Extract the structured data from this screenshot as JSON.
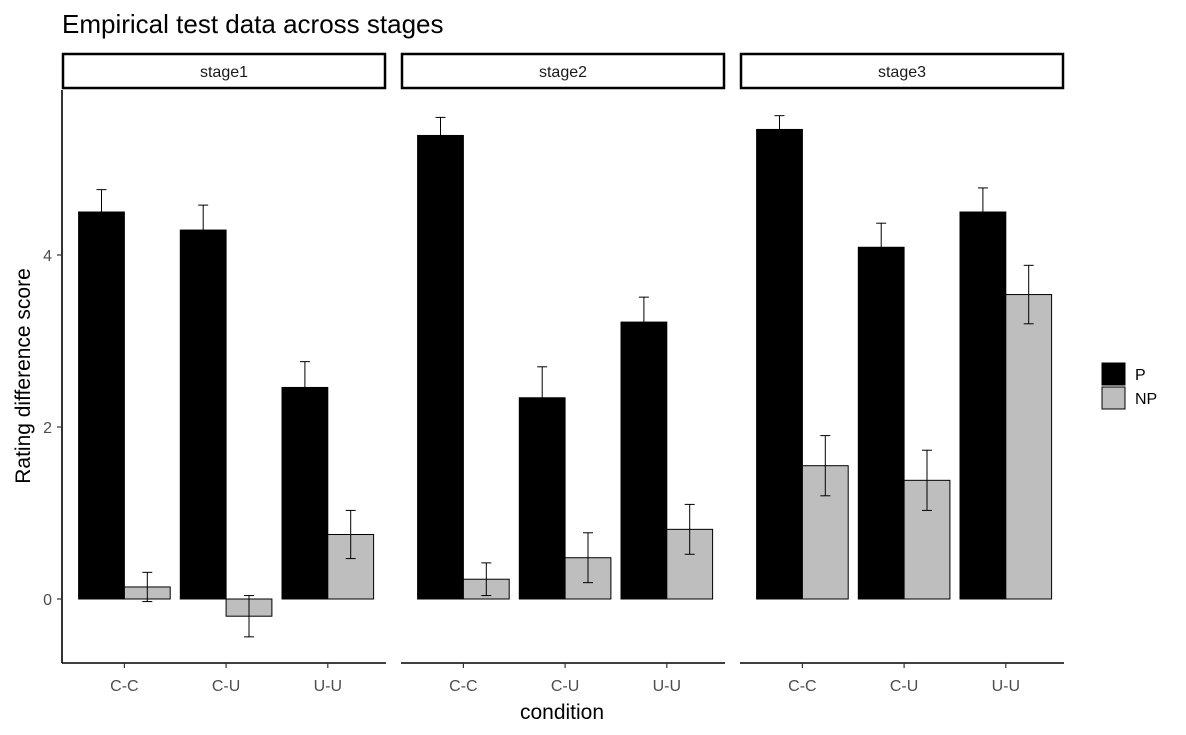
{
  "chart_data": {
    "type": "bar",
    "title": "Empirical test data across stages",
    "xlabel": "condition",
    "ylabel": "Rating difference score",
    "ylim": [
      -0.75,
      5.9
    ],
    "yticks": [
      0,
      2,
      4
    ],
    "categories": [
      "C-C",
      "C-U",
      "U-U"
    ],
    "legend": {
      "position": "right",
      "entries": [
        "P",
        "NP"
      ]
    },
    "colors": {
      "P": "#000000",
      "NP": "#bebebe"
    },
    "grid": false,
    "panels": [
      {
        "label": "stage1",
        "series": [
          {
            "name": "P",
            "values": [
              4.5,
              4.29,
              2.46
            ],
            "errors": [
              0.26,
              0.29,
              0.3
            ]
          },
          {
            "name": "NP",
            "values": [
              0.14,
              -0.2,
              0.75
            ],
            "errors": [
              0.17,
              0.24,
              0.28
            ]
          }
        ]
      },
      {
        "label": "stage2",
        "series": [
          {
            "name": "P",
            "values": [
              5.39,
              2.34,
              3.22
            ],
            "errors": [
              0.21,
              0.36,
              0.29
            ]
          },
          {
            "name": "NP",
            "values": [
              0.23,
              0.48,
              0.81
            ],
            "errors": [
              0.19,
              0.29,
              0.29
            ]
          }
        ]
      },
      {
        "label": "stage3",
        "series": [
          {
            "name": "P",
            "values": [
              5.46,
              4.09,
              4.5
            ],
            "errors": [
              0.16,
              0.28,
              0.28
            ]
          },
          {
            "name": "NP",
            "values": [
              1.55,
              1.38,
              3.54
            ],
            "errors": [
              0.35,
              0.35,
              0.34
            ]
          }
        ]
      }
    ]
  }
}
